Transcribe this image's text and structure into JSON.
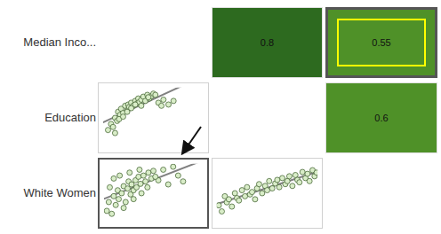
{
  "matrix": {
    "variables": [
      "Median Inco...",
      "Education",
      "White Women"
    ],
    "correlations": [
      {
        "row": 0,
        "col": 1,
        "value": 0.8,
        "color": "#2d6a1f"
      },
      {
        "row": 0,
        "col": 2,
        "value": 0.55,
        "color": "#4f9128"
      },
      {
        "row": 1,
        "col": 2,
        "value": 0.6,
        "color": "#4f9128"
      }
    ]
  },
  "chart_data": [
    {
      "type": "scatter",
      "row": 1,
      "col": 0,
      "color": "#d9edc8",
      "marker": "circle",
      "tick_labels": false,
      "xlim": [
        0,
        100
      ],
      "ylim": [
        0,
        100
      ],
      "x": [
        5,
        8,
        10,
        12,
        14,
        15,
        17,
        18,
        20,
        22,
        24,
        25,
        26,
        28,
        30,
        32,
        34,
        35,
        36,
        38,
        40,
        42,
        44,
        46,
        48,
        50,
        55,
        60,
        65,
        70,
        12,
        16,
        20,
        24,
        28,
        32,
        38,
        45,
        52,
        58
      ],
      "values": [
        30,
        40,
        35,
        50,
        45,
        60,
        55,
        65,
        58,
        70,
        62,
        72,
        68,
        75,
        70,
        78,
        74,
        82,
        76,
        80,
        85,
        78,
        88,
        82,
        86,
        90,
        75,
        80,
        72,
        78,
        25,
        48,
        52,
        60,
        66,
        72,
        70,
        84,
        88,
        70
      ]
    },
    {
      "type": "scatter",
      "row": 2,
      "col": 0,
      "color": "#d9edc8",
      "marker": "circle",
      "tick_labels": false,
      "xlim": [
        0,
        100
      ],
      "ylim": [
        0,
        100
      ],
      "x": [
        3,
        5,
        8,
        10,
        12,
        14,
        15,
        18,
        20,
        22,
        24,
        25,
        27,
        28,
        30,
        32,
        33,
        35,
        37,
        38,
        40,
        42,
        45,
        48,
        50,
        55,
        60,
        65,
        70,
        75,
        6,
        10,
        16,
        20,
        26,
        30,
        36,
        44,
        52,
        80
      ],
      "values": [
        20,
        35,
        15,
        45,
        30,
        55,
        40,
        50,
        62,
        35,
        58,
        70,
        48,
        65,
        55,
        72,
        60,
        78,
        66,
        50,
        80,
        70,
        85,
        75,
        88,
        72,
        90,
        65,
        95,
        80,
        60,
        75,
        80,
        25,
        85,
        40,
        90,
        60,
        78,
        70
      ]
    },
    {
      "type": "scatter",
      "row": 2,
      "col": 1,
      "color": "#d9edc8",
      "marker": "circle",
      "tick_labels": false,
      "xlim": [
        0,
        100
      ],
      "ylim": [
        0,
        100
      ],
      "x": [
        2,
        5,
        8,
        10,
        12,
        15,
        18,
        20,
        22,
        25,
        28,
        30,
        33,
        35,
        38,
        40,
        42,
        45,
        48,
        50,
        52,
        55,
        58,
        60,
        62,
        65,
        68,
        70,
        72,
        75,
        78,
        80,
        82,
        85,
        88,
        90,
        92,
        95,
        97,
        99
      ],
      "values": [
        30,
        20,
        45,
        35,
        40,
        28,
        50,
        42,
        38,
        55,
        45,
        60,
        48,
        52,
        40,
        58,
        65,
        50,
        62,
        55,
        70,
        58,
        66,
        72,
        60,
        75,
        65,
        70,
        78,
        62,
        80,
        72,
        68,
        85,
        75,
        82,
        70,
        88,
        78,
        84
      ]
    }
  ]
}
